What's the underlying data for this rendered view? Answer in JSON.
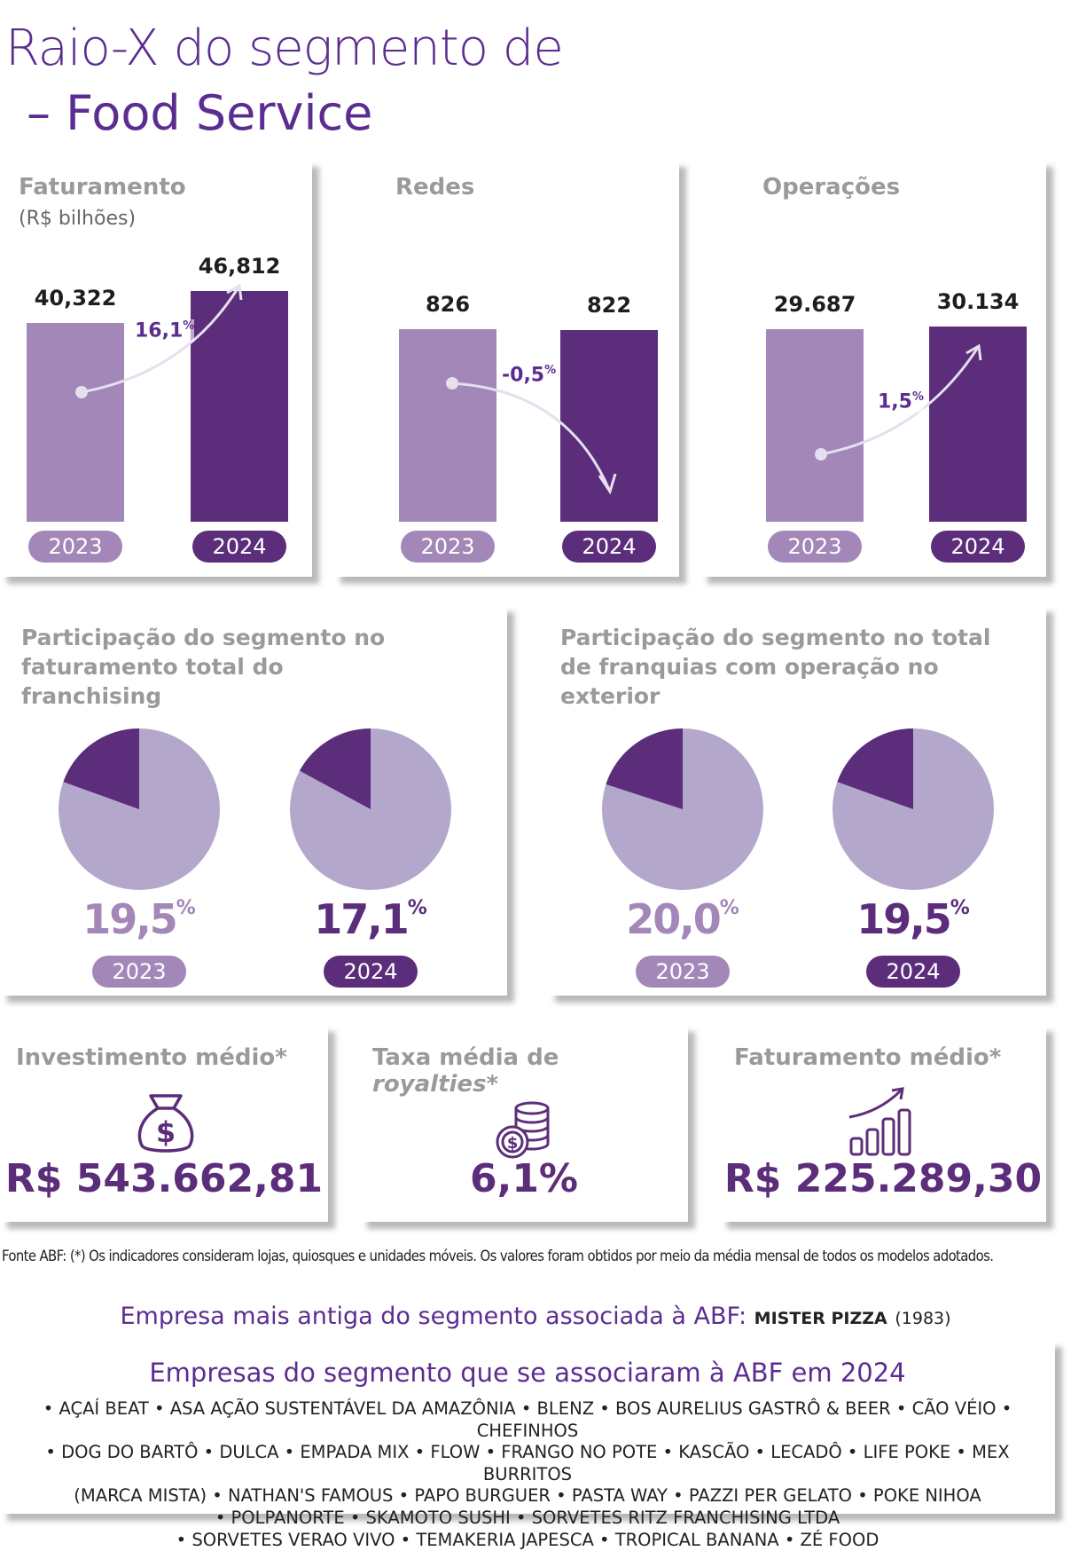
{
  "title": {
    "line1": "Raio-X do segmento de",
    "line2": "– Food Service"
  },
  "chart_data": [
    {
      "type": "bar",
      "title": "Faturamento",
      "subtitle": "(R$ bilhões)",
      "categories": [
        "2023",
        "2024"
      ],
      "values": [
        40.322,
        46.812
      ],
      "value_labels": [
        "40,322",
        "46,812"
      ],
      "change_label": "16,1",
      "change_unit": "%",
      "colors": [
        "#a387b8",
        "#5c2d7a"
      ]
    },
    {
      "type": "bar",
      "title": "Redes",
      "categories": [
        "2023",
        "2024"
      ],
      "values": [
        826,
        822
      ],
      "value_labels": [
        "826",
        "822"
      ],
      "change_label": "-0,5",
      "change_unit": "%",
      "colors": [
        "#a387b8",
        "#5c2d7a"
      ]
    },
    {
      "type": "bar",
      "title": "Operações",
      "categories": [
        "2023",
        "2024"
      ],
      "values": [
        29687,
        30134
      ],
      "value_labels": [
        "29.687",
        "30.134"
      ],
      "change_label": "1,5",
      "change_unit": "%",
      "colors": [
        "#a387b8",
        "#5c2d7a"
      ]
    },
    {
      "type": "pie",
      "title": "Participação do segmento no faturamento total do franchising",
      "categories": [
        "2023",
        "2024"
      ],
      "values": [
        19.5,
        17.1
      ],
      "value_labels": [
        "19,5",
        "17,1"
      ],
      "unit": "%",
      "colors": {
        "slice": "#5c2d7a",
        "rest": "#b3a8cb"
      }
    },
    {
      "type": "pie",
      "title": "Participação do segmento no total de franquias com operação no exterior",
      "categories": [
        "2023",
        "2024"
      ],
      "values": [
        20.0,
        19.5
      ],
      "value_labels": [
        "20,0",
        "19,5"
      ],
      "unit": "%",
      "colors": {
        "slice": "#5c2d7a",
        "rest": "#b3a8cb"
      }
    }
  ],
  "kpis": [
    {
      "label": "Investimento médio*",
      "value": "R$ 543.662,81",
      "icon": "money-bag-icon"
    },
    {
      "label_pre": "Taxa média de ",
      "label_em": "royalties",
      "label_post": "*",
      "value": "6,1%",
      "icon": "coin-stack-icon"
    },
    {
      "label": "Faturamento médio*",
      "value": "R$ 225.289,30",
      "icon": "growth-chart-icon"
    }
  ],
  "source": "Fonte ABF: (*) Os indicadores consideram lojas, quiosques e unidades móveis. Os valores foram obtidos por meio da média mensal de todos os modelos adotados.",
  "oldest": {
    "label": "Empresa mais antiga do segmento associada à ABF:",
    "company": "MISTER PIZZA",
    "year": "(1983)"
  },
  "new_members": {
    "title": "Empresas do segmento que se associaram à ABF em 2024",
    "lines": [
      "• AÇAÍ BEAT • ASA AÇÃO SUSTENTÁVEL DA AMAZÔNIA • BLENZ • BOS AURELIUS GASTRÔ & BEER • CÃO VÉIO • CHEFINHOS",
      "• DOG DO BARTÔ • DULCA • EMPADA MIX • FLOW • FRANGO NO POTE • KASCÃO • LECADÔ • LIFE POKE • MEX BURRITOS",
      "(MARCA MISTA) • NATHAN'S FAMOUS • PAPO BURGUER • PASTA WAY • PAZZI PER GELATO • POKE NIHOA",
      "• POLPANORTE • SKAMOTO SUSHI • SORVETES RITZ FRANCHISING LTDA",
      "• SORVETES VERAO VIVO • TEMAKERIA JAPESCA • TROPICAL BANANA • ZÉ FOOD"
    ]
  }
}
